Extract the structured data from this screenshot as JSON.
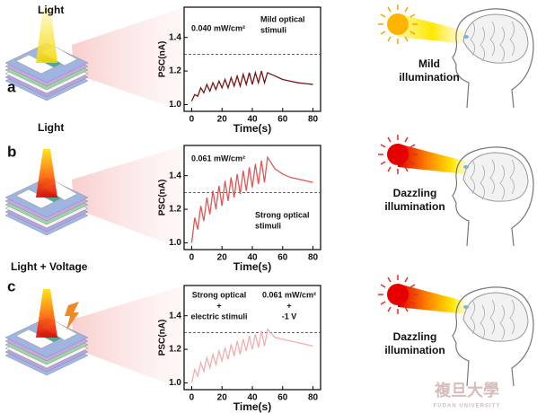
{
  "chart_data": [
    {
      "type": "line",
      "xlabel": "Time(s)",
      "ylabel": "PSC(nA)",
      "x": [
        0,
        2,
        4,
        6,
        8,
        10,
        12,
        14,
        16,
        18,
        20,
        22,
        24,
        26,
        28,
        30,
        32,
        34,
        36,
        38,
        40,
        42,
        44,
        46,
        48,
        50,
        55,
        60,
        65,
        70,
        75,
        80
      ],
      "series": [
        {
          "color": "#7a1414",
          "values": [
            1.02,
            1.06,
            1.05,
            1.1,
            1.07,
            1.12,
            1.08,
            1.13,
            1.09,
            1.14,
            1.1,
            1.15,
            1.1,
            1.16,
            1.11,
            1.17,
            1.11,
            1.18,
            1.12,
            1.19,
            1.12,
            1.19,
            1.13,
            1.2,
            1.13,
            1.19,
            1.17,
            1.15,
            1.14,
            1.13,
            1.125,
            1.12
          ]
        }
      ],
      "xlim": [
        -5,
        85
      ],
      "xticks": [
        0,
        20,
        40,
        60,
        80
      ],
      "ylim": [
        0.96,
        1.58
      ],
      "yticks": [
        {
          "value": 1.0,
          "label": "1.0"
        },
        {
          "value": 1.2,
          "label": "1.2"
        },
        {
          "value": 1.4,
          "label": "1.4"
        }
      ],
      "reference_line": 1.3,
      "annotations": [
        [
          "0.040 mW/cm²"
        ],
        [
          "Mild optical",
          "stimuli"
        ]
      ]
    },
    {
      "type": "line",
      "xlabel": "Time(s)",
      "ylabel": "PSC(nA)",
      "x": [
        0,
        2,
        4,
        6,
        8,
        10,
        12,
        14,
        16,
        18,
        20,
        22,
        24,
        26,
        28,
        30,
        32,
        34,
        36,
        38,
        40,
        42,
        44,
        46,
        48,
        50,
        55,
        60,
        65,
        70,
        75,
        80
      ],
      "series": [
        {
          "color": "#e05656",
          "values": [
            1.0,
            1.15,
            1.08,
            1.22,
            1.13,
            1.27,
            1.17,
            1.31,
            1.2,
            1.34,
            1.22,
            1.37,
            1.25,
            1.39,
            1.27,
            1.41,
            1.29,
            1.43,
            1.31,
            1.45,
            1.33,
            1.47,
            1.35,
            1.49,
            1.36,
            1.51,
            1.44,
            1.41,
            1.39,
            1.38,
            1.37,
            1.36
          ]
        }
      ],
      "xlim": [
        -5,
        85
      ],
      "xticks": [
        0,
        20,
        40,
        60,
        80
      ],
      "ylim": [
        0.96,
        1.58
      ],
      "yticks": [
        {
          "value": 1.0,
          "label": "1.0"
        },
        {
          "value": 1.2,
          "label": "1.2"
        },
        {
          "value": 1.4,
          "label": "1.4"
        }
      ],
      "reference_line": 1.3,
      "annotations": [
        [
          "0.061 mW/cm²"
        ],
        [
          "Strong optical",
          "stimuli"
        ]
      ]
    },
    {
      "type": "line",
      "xlabel": "Time(s)",
      "ylabel": "PSC(nA)",
      "x": [
        0,
        2,
        4,
        6,
        8,
        10,
        12,
        14,
        16,
        18,
        20,
        22,
        24,
        26,
        28,
        30,
        32,
        34,
        36,
        38,
        40,
        42,
        44,
        46,
        48,
        50,
        55,
        60,
        65,
        70,
        75,
        80
      ],
      "series": [
        {
          "color": "#f2adad",
          "values": [
            1.0,
            1.08,
            1.04,
            1.12,
            1.07,
            1.15,
            1.09,
            1.17,
            1.11,
            1.19,
            1.13,
            1.21,
            1.14,
            1.23,
            1.16,
            1.25,
            1.17,
            1.26,
            1.19,
            1.28,
            1.2,
            1.29,
            1.21,
            1.31,
            1.22,
            1.32,
            1.27,
            1.26,
            1.25,
            1.24,
            1.23,
            1.22
          ]
        }
      ],
      "xlim": [
        -5,
        85
      ],
      "xticks": [
        0,
        20,
        40,
        60,
        80
      ],
      "ylim": [
        0.96,
        1.58
      ],
      "yticks": [
        {
          "value": 1.0,
          "label": "1.0"
        },
        {
          "value": 1.2,
          "label": "1.2"
        },
        {
          "value": 1.4,
          "label": "1.4"
        }
      ],
      "reference_line": 1.3,
      "annotations": [
        [
          "Strong optical",
          "+",
          "electric stimuli"
        ],
        [
          "0.061 mW/cm²",
          "+",
          "-1 V"
        ]
      ]
    }
  ],
  "panels": [
    {
      "label": "a",
      "light_label": "Light",
      "illumination": [
        "Mild",
        "illumination"
      ]
    },
    {
      "label": "b",
      "light_label": "Light",
      "illumination": [
        "Dazzling",
        "illumination"
      ]
    },
    {
      "label": "c",
      "light_label": "Light + Voltage",
      "illumination": [
        "Dazzling",
        "illumination"
      ]
    }
  ],
  "watermark": [
    "複旦大學",
    "FUDAN UNIVERSITY"
  ]
}
